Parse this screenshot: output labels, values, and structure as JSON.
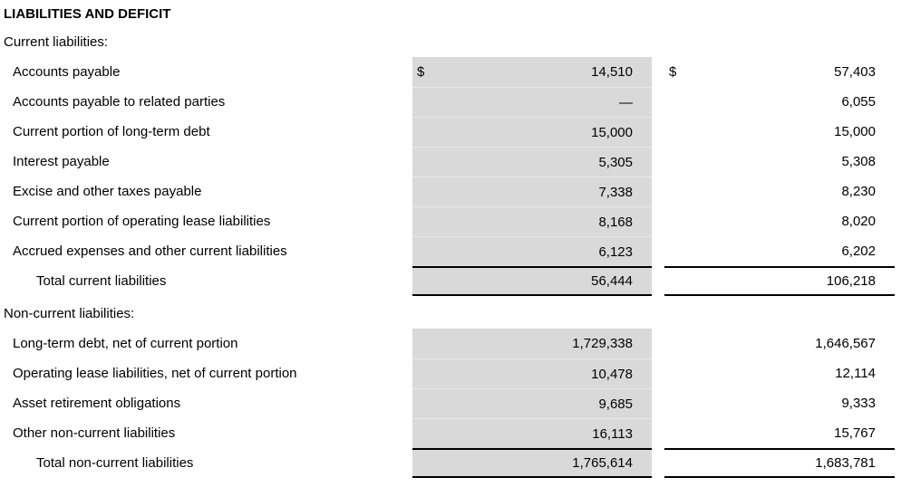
{
  "title": "LIABILITIES AND DEFICIT",
  "colors": {
    "shaded_column_bg": "#d9d9d9",
    "shaded_row_divider": "#e7e7e7",
    "total_rule": "#000000",
    "text": "#000000",
    "background": "#ffffff"
  },
  "sections": [
    {
      "header": "Current liabilities:",
      "rows": [
        {
          "label": "Accounts payable",
          "dollar1": "$",
          "col1": "14,510",
          "dollar2": "$",
          "col2": "57,403"
        },
        {
          "label": "Accounts payable to related parties",
          "col1": "—",
          "col2": "6,055"
        },
        {
          "label": "Current portion of long-term debt",
          "col1": "15,000",
          "col2": "15,000"
        },
        {
          "label": "Interest payable",
          "col1": "5,305",
          "col2": "5,308"
        },
        {
          "label": "Excise and other taxes payable",
          "col1": "7,338",
          "col2": "8,230"
        },
        {
          "label": "Current portion of operating lease liabilities",
          "col1": "8,168",
          "col2": "8,020"
        },
        {
          "label": "Accrued expenses and other current liabilities",
          "col1": "6,123",
          "col2": "6,202"
        }
      ],
      "total": {
        "label": "Total current liabilities",
        "col1": "56,444",
        "col2": "106,218"
      }
    },
    {
      "header": "Non-current liabilities:",
      "rows": [
        {
          "label": "Long-term debt, net of current portion",
          "col1": "1,729,338",
          "col2": "1,646,567"
        },
        {
          "label": "Operating lease liabilities, net of current portion",
          "col1": "10,478",
          "col2": "12,114"
        },
        {
          "label": "Asset retirement obligations",
          "col1": "9,685",
          "col2": "9,333"
        },
        {
          "label": "Other non-current liabilities",
          "col1": "16,113",
          "col2": "15,767"
        }
      ],
      "total": {
        "label": "Total non-current liabilities",
        "col1": "1,765,614",
        "col2": "1,683,781"
      }
    }
  ]
}
